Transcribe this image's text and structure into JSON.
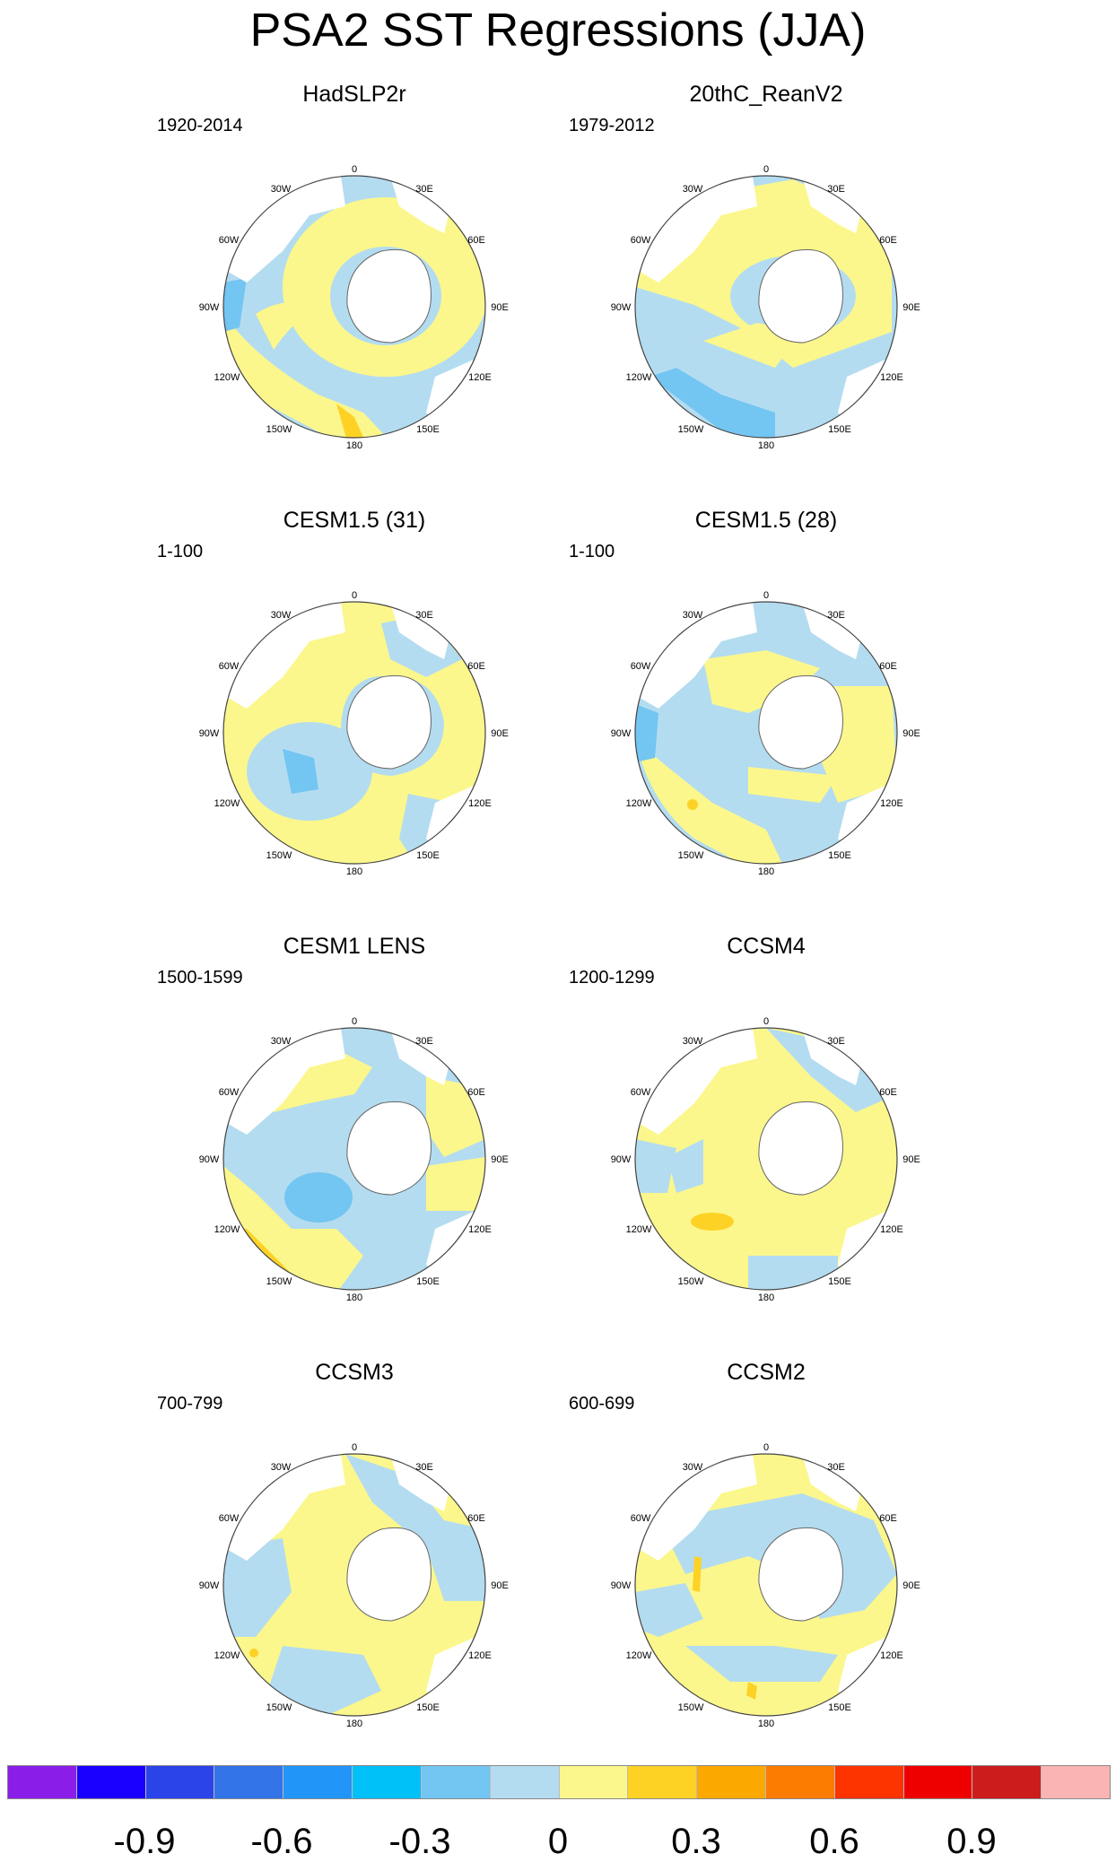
{
  "title": "PSA2 SST Regressions (JJA)",
  "lon_labels": [
    "0",
    "30E",
    "60E",
    "90E",
    "120E",
    "150E",
    "180",
    "150W",
    "120W",
    "90W",
    "60W",
    "30W"
  ],
  "panels": [
    {
      "title": "HadSLP2r",
      "period": "1920-2014"
    },
    {
      "title": "20thC_ReanV2",
      "period": "1979-2012"
    },
    {
      "title": "CESM1.5 (31)",
      "period": "1-100"
    },
    {
      "title": "CESM1.5 (28)",
      "period": "1-100"
    },
    {
      "title": "CESM1 LENS",
      "period": "1500-1599"
    },
    {
      "title": "CCSM4",
      "period": "1200-1299"
    },
    {
      "title": "CCSM3",
      "period": "700-799"
    },
    {
      "title": "CCSM2",
      "period": "600-699"
    }
  ],
  "colorbar": {
    "colors": [
      "#8a1ee8",
      "#1a00ff",
      "#2a44ea",
      "#3374e8",
      "#2196f8",
      "#00c0f8",
      "#73c5f2",
      "#b4dcf0",
      "#fbf78c",
      "#fdd225",
      "#fba800",
      "#fb7c00",
      "#fd3300",
      "#ee0000",
      "#cc1c1c",
      "#fbb4b4"
    ],
    "labels": [
      "-0.9",
      "-0.6",
      "-0.3",
      "0",
      "0.3",
      "0.6",
      "0.9"
    ]
  },
  "legend": {
    "light_blue": "#b4dcf0",
    "yellow": "#fbf78c",
    "mid_blue": "#73c5f2",
    "gold": "#fdd225"
  }
}
